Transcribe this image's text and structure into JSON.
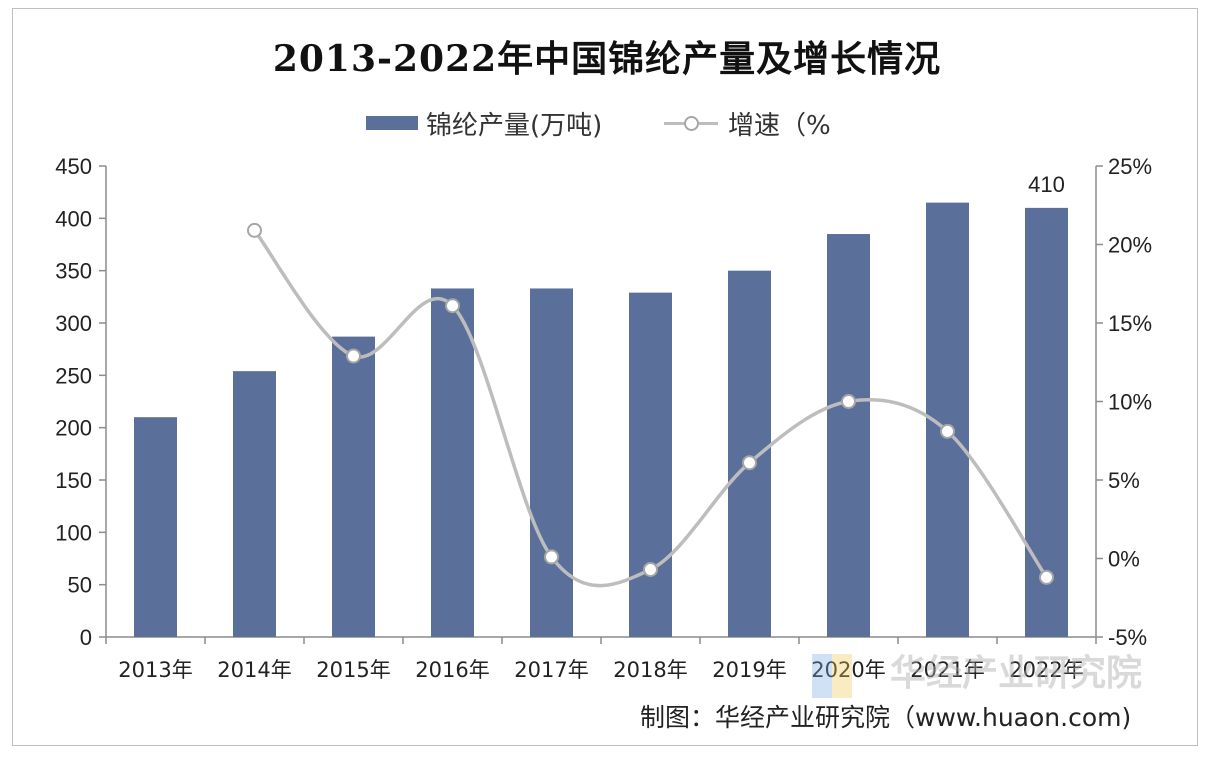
{
  "chart_data": {
    "type": "bar",
    "title": "2013-2022年中国锦纶产量及增长情况",
    "categories": [
      "2013年",
      "2014年",
      "2015年",
      "2016年",
      "2017年",
      "2018年",
      "2019年",
      "2020年",
      "2021年",
      "2022年"
    ],
    "series": [
      {
        "name": "锦纶产量(万吨)",
        "type": "bar",
        "axis": "left",
        "color": "#5b6f9b",
        "values": [
          210,
          254,
          287,
          333,
          333,
          329,
          350,
          385,
          415,
          410
        ]
      },
      {
        "name": "增速（%",
        "type": "line",
        "axis": "right",
        "color": "#bdbdbd",
        "values": [
          null,
          20.9,
          12.9,
          16.1,
          0.1,
          -0.7,
          6.1,
          10.0,
          8.1,
          -1.2
        ]
      }
    ],
    "data_labels": [
      {
        "category": "2022年",
        "text": "410"
      }
    ],
    "ylim_left": [
      0,
      450
    ],
    "yticks_left": [
      "0",
      "50",
      "100",
      "150",
      "200",
      "250",
      "300",
      "350",
      "400",
      "450"
    ],
    "ylim_right": [
      -5,
      25
    ],
    "yticks_right": [
      "-5%",
      "0%",
      "5%",
      "10%",
      "15%",
      "20%",
      "25%"
    ],
    "grid": false,
    "legend_position": "top"
  },
  "footer": {
    "source": "制图：华经产业研究院（www.huaon.com)",
    "watermark": "华经产业研究院"
  }
}
